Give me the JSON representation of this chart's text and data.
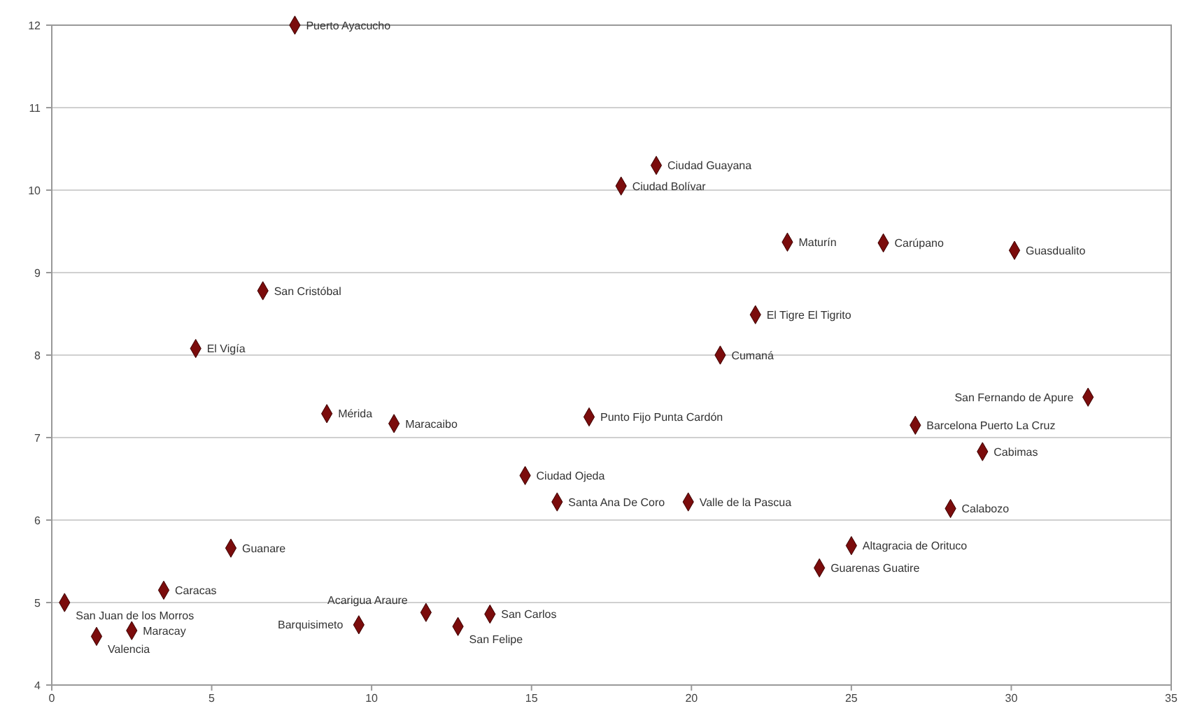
{
  "chart_data": {
    "type": "scatter",
    "marker": "diamond",
    "grid": "y",
    "xlim": [
      0,
      35
    ],
    "xticks": [
      0,
      5,
      10,
      15,
      20,
      25,
      30,
      35
    ],
    "ylim": [
      4,
      12
    ],
    "yticks": [
      4,
      5,
      6,
      7,
      8,
      9,
      10,
      11,
      12
    ],
    "series": [
      {
        "color": "#7b0c0c",
        "x": [
          7.6,
          18.9,
          17.8,
          23.0,
          26.0,
          30.1,
          6.6,
          22.0,
          4.5,
          20.9,
          32.4,
          8.6,
          16.8,
          10.7,
          27.0,
          29.1,
          14.8,
          15.8,
          19.9,
          28.1,
          5.6,
          25.0,
          24.0,
          3.5,
          0.4,
          9.6,
          11.7,
          13.7,
          12.7,
          1.4,
          2.5
        ],
        "values": [
          12.0,
          10.3,
          10.05,
          9.37,
          9.36,
          9.27,
          8.78,
          8.49,
          8.08,
          8.0,
          7.49,
          7.29,
          7.25,
          7.17,
          7.15,
          6.83,
          6.54,
          6.22,
          6.22,
          6.14,
          5.66,
          5.69,
          5.42,
          5.15,
          5.0,
          4.73,
          4.88,
          4.86,
          4.71,
          4.59,
          4.66
        ]
      }
    ],
    "annotations": [
      {
        "text": "Puerto Ayacucho",
        "x": 7.6,
        "y": 12.0
      },
      {
        "text": "Ciudad Guayana",
        "x": 18.9,
        "y": 10.3
      },
      {
        "text": "Ciudad Bolívar",
        "x": 17.8,
        "y": 10.05
      },
      {
        "text": "Maturín",
        "x": 23.0,
        "y": 9.37
      },
      {
        "text": "Carúpano",
        "x": 26.0,
        "y": 9.36
      },
      {
        "text": "Guasdualito",
        "x": 30.1,
        "y": 9.27
      },
      {
        "text": "San Cristóbal",
        "x": 6.6,
        "y": 8.78
      },
      {
        "text": "El Tigre El Tigrito",
        "x": 22.0,
        "y": 8.49
      },
      {
        "text": "El Vigía",
        "x": 4.5,
        "y": 8.08
      },
      {
        "text": "Cumaná",
        "x": 20.9,
        "y": 8.0
      },
      {
        "text": "San Fernando de Apure",
        "x": 32.4,
        "y": 7.49
      },
      {
        "text": "Mérida",
        "x": 8.6,
        "y": 7.29
      },
      {
        "text": "Punto Fijo Punta Cardón",
        "x": 16.8,
        "y": 7.25
      },
      {
        "text": "Maracaibo",
        "x": 10.7,
        "y": 7.17
      },
      {
        "text": "Barcelona Puerto La Cruz",
        "x": 27.0,
        "y": 7.15
      },
      {
        "text": "Cabimas",
        "x": 29.1,
        "y": 6.83
      },
      {
        "text": "Ciudad Ojeda",
        "x": 14.8,
        "y": 6.54
      },
      {
        "text": "Santa Ana De Coro",
        "x": 15.8,
        "y": 6.22
      },
      {
        "text": "Valle de la Pascua",
        "x": 19.9,
        "y": 6.22
      },
      {
        "text": "Calabozo",
        "x": 28.1,
        "y": 6.14
      },
      {
        "text": "Guanare",
        "x": 5.6,
        "y": 5.66
      },
      {
        "text": "Altagracia de Orituco",
        "x": 25.0,
        "y": 5.69
      },
      {
        "text": "Guarenas Guatire",
        "x": 24.0,
        "y": 5.42
      },
      {
        "text": "Caracas",
        "x": 3.5,
        "y": 5.15
      },
      {
        "text": "San Juan de los Morros",
        "x": 0.4,
        "y": 5.0
      },
      {
        "text": "Barquisimeto",
        "x": 9.6,
        "y": 4.73
      },
      {
        "text": "Acarigua Araure",
        "x": 11.7,
        "y": 4.88
      },
      {
        "text": "San Carlos",
        "x": 13.7,
        "y": 4.86
      },
      {
        "text": "San Felipe",
        "x": 12.7,
        "y": 4.71
      },
      {
        "text": "Valencia",
        "x": 1.4,
        "y": 4.59
      },
      {
        "text": "Maracay",
        "x": 2.5,
        "y": 4.66
      }
    ]
  }
}
